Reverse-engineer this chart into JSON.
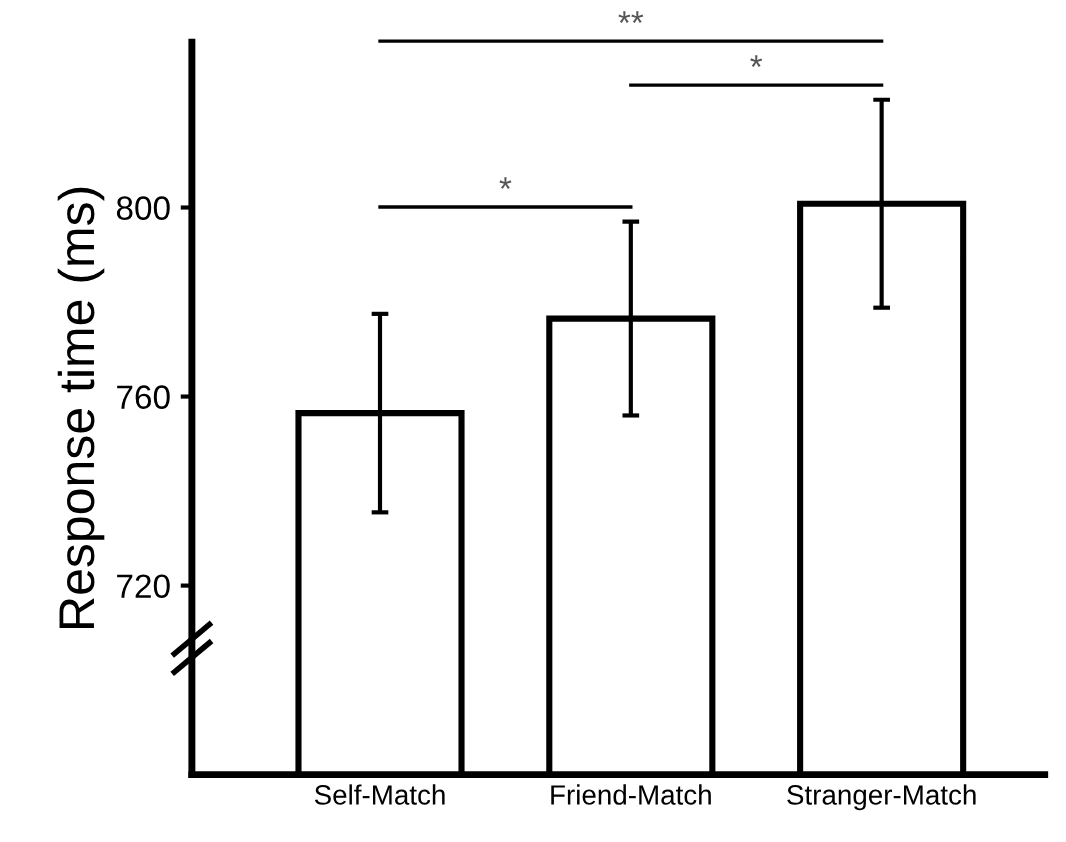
{
  "chart_data": {
    "type": "bar",
    "ylabel": "Response time (ms)",
    "categories": [
      "Self-Match",
      "Friend-Match",
      "Stranger-Match"
    ],
    "values": [
      756.5,
      776.5,
      800.8
    ],
    "errors": [
      21,
      20.5,
      22
    ],
    "color": "#ffffff",
    "ylim": [
      680,
      835
    ],
    "yticks": [
      720,
      760,
      800
    ],
    "grid": false,
    "annotations": [
      "*",
      "*",
      "**"
    ]
  }
}
